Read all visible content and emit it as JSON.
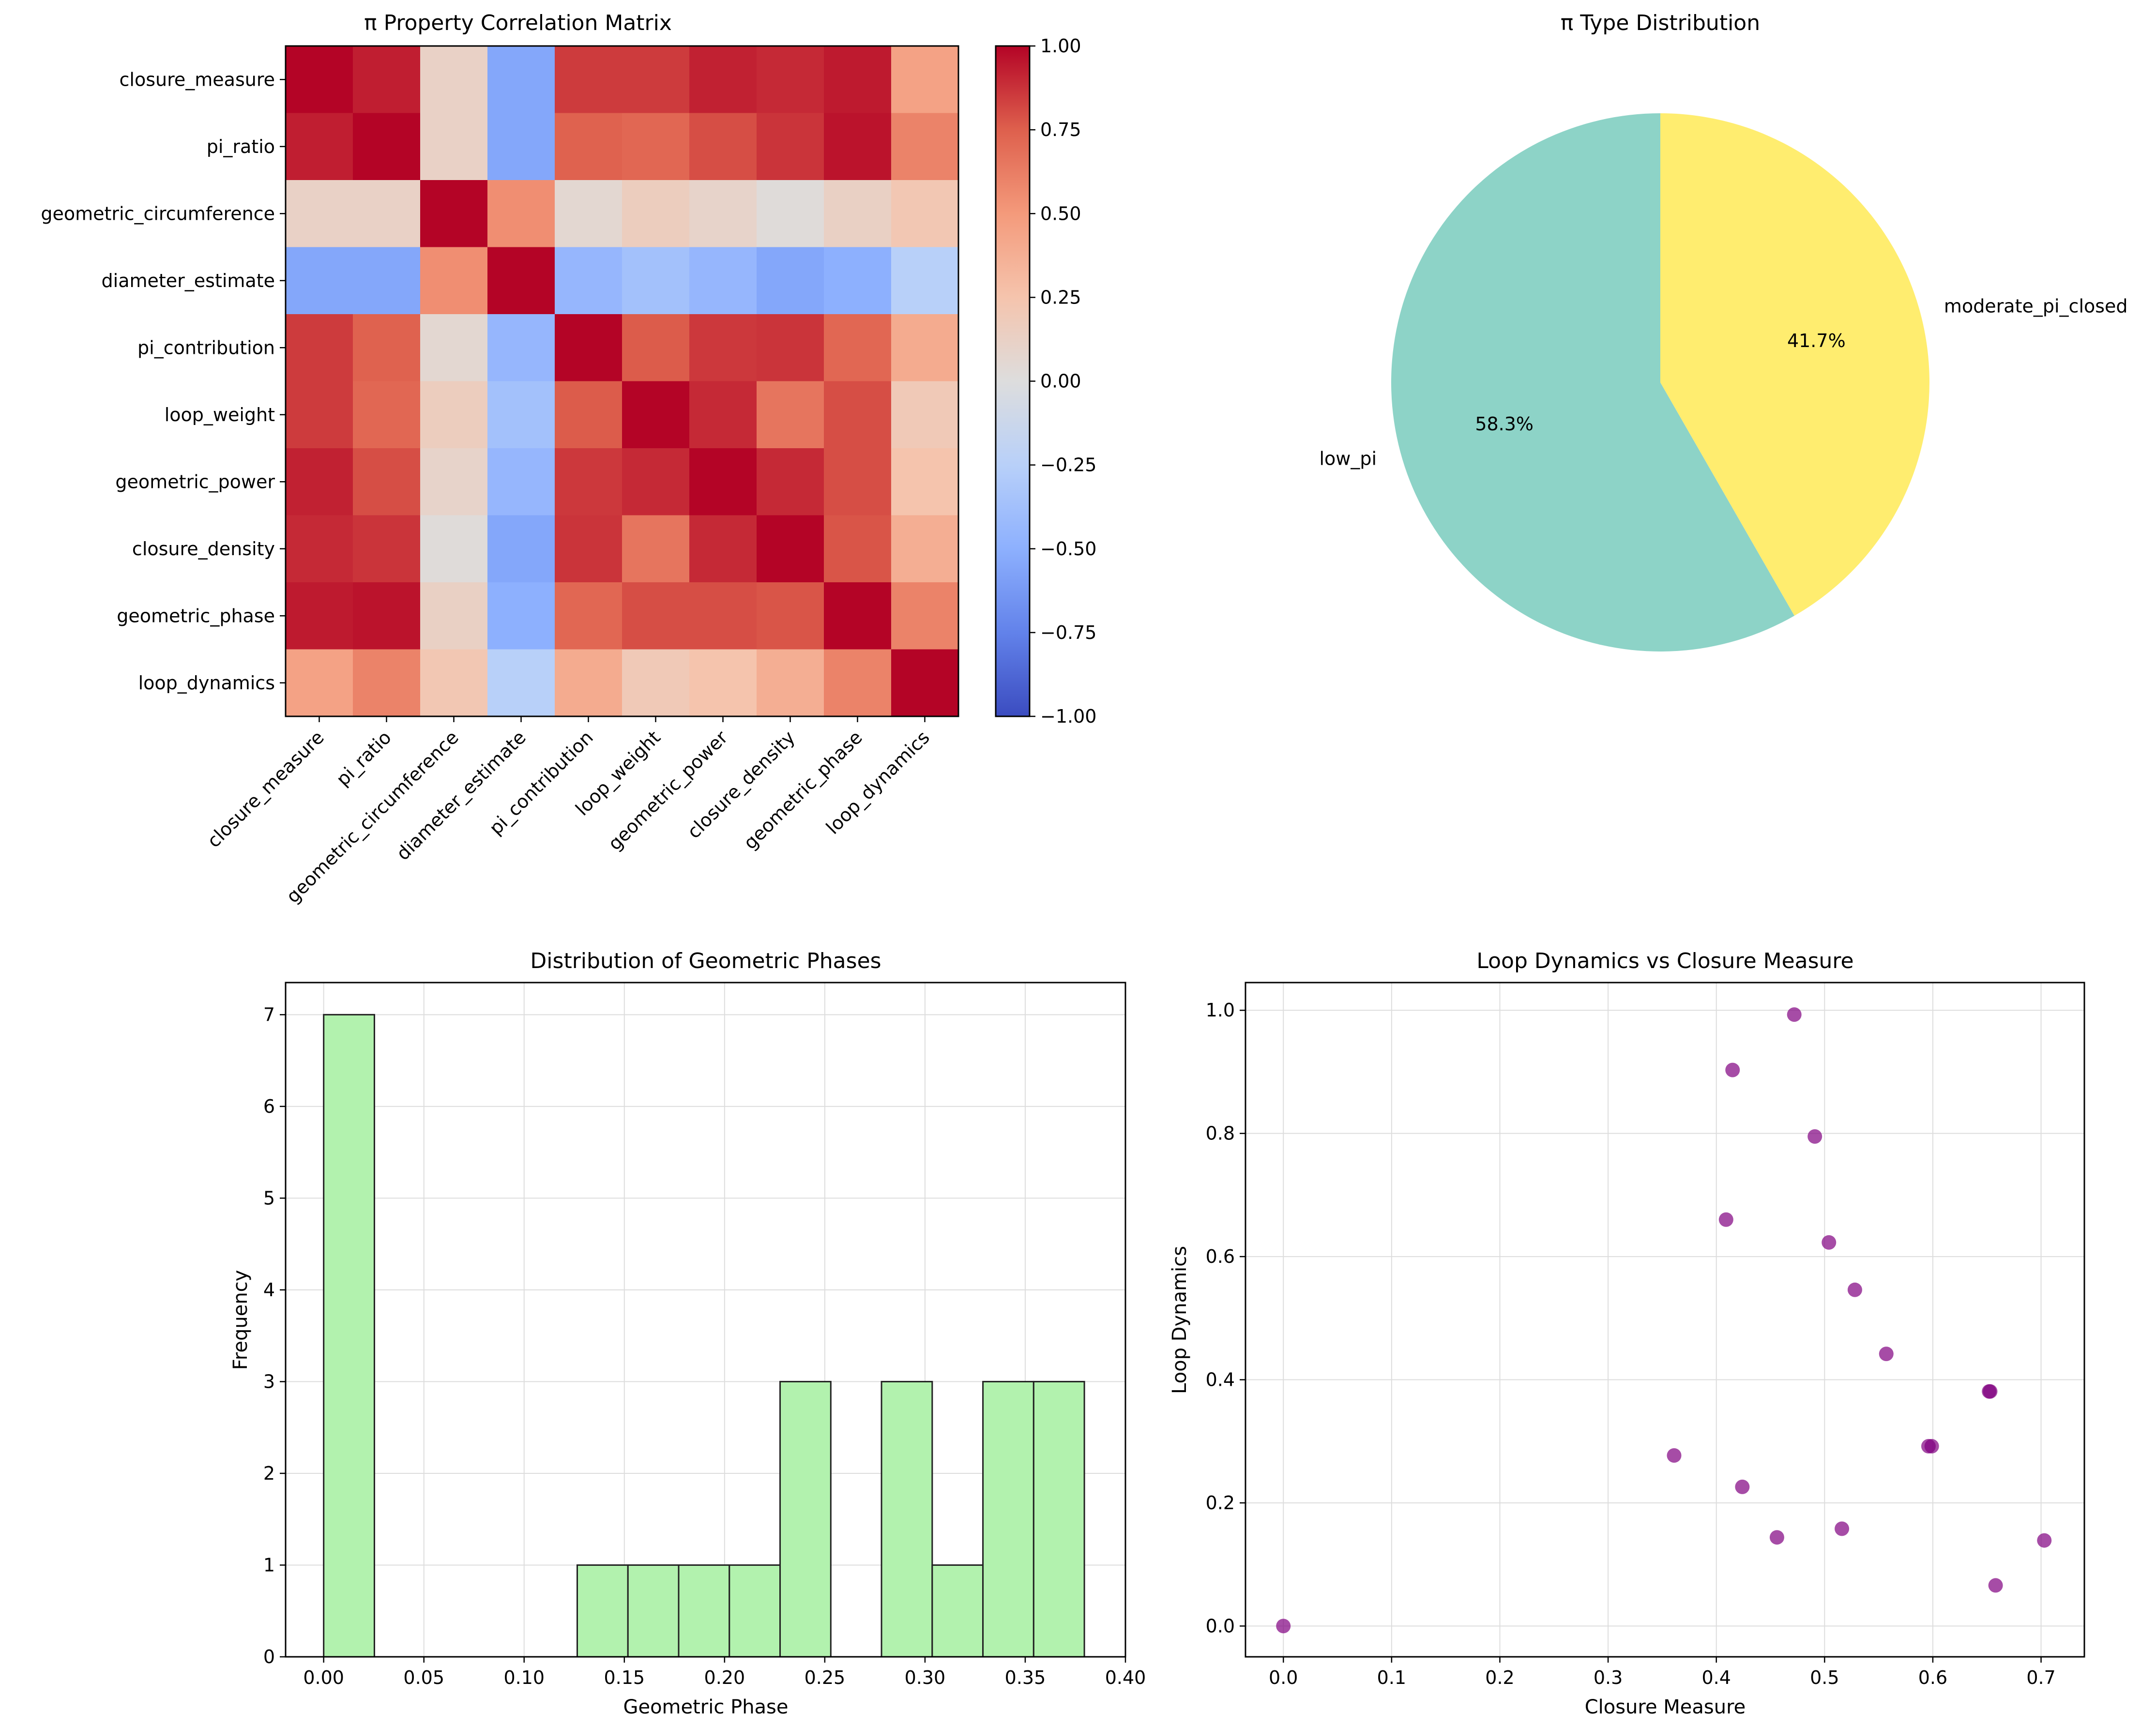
{
  "colors": {
    "pie": [
      "#8dd3c7",
      "#ffed6f"
    ],
    "hist_fill": "#b2f2ae",
    "scatter": "#800080",
    "grid": "#dddddd"
  },
  "chart_data": [
    {
      "id": "heatmap",
      "type": "heatmap",
      "title": "π Property Correlation Matrix",
      "labels": [
        "closure_measure",
        "pi_ratio",
        "geometric_circumference",
        "diameter_estimate",
        "pi_contribution",
        "loop_weight",
        "geometric_power",
        "closure_density",
        "geometric_phase",
        "loop_dynamics"
      ],
      "matrix": [
        [
          1.0,
          0.93,
          0.12,
          -0.55,
          0.85,
          0.85,
          0.92,
          0.9,
          0.94,
          0.45
        ],
        [
          0.93,
          1.0,
          0.12,
          -0.55,
          0.74,
          0.72,
          0.8,
          0.87,
          0.96,
          0.6
        ],
        [
          0.12,
          0.12,
          1.0,
          0.55,
          0.06,
          0.16,
          0.1,
          0.02,
          0.13,
          0.22
        ],
        [
          -0.55,
          -0.55,
          0.55,
          1.0,
          -0.45,
          -0.37,
          -0.45,
          -0.55,
          -0.5,
          -0.25
        ],
        [
          0.85,
          0.74,
          0.06,
          -0.45,
          1.0,
          0.76,
          0.86,
          0.87,
          0.72,
          0.4
        ],
        [
          0.85,
          0.72,
          0.16,
          -0.37,
          0.76,
          1.0,
          0.9,
          0.66,
          0.8,
          0.2
        ],
        [
          0.92,
          0.8,
          0.1,
          -0.45,
          0.86,
          0.9,
          1.0,
          0.9,
          0.8,
          0.25
        ],
        [
          0.9,
          0.87,
          0.02,
          -0.55,
          0.87,
          0.66,
          0.9,
          1.0,
          0.78,
          0.38
        ],
        [
          0.94,
          0.96,
          0.13,
          -0.5,
          0.72,
          0.8,
          0.8,
          0.78,
          1.0,
          0.6
        ],
        [
          0.45,
          0.6,
          0.22,
          -0.25,
          0.4,
          0.2,
          0.25,
          0.38,
          0.6,
          1.0
        ]
      ],
      "vmin": -1.0,
      "vmax": 1.0,
      "colorbar_ticks": [
        "1.00",
        "0.75",
        "0.50",
        "0.25",
        "0.00",
        "−0.25",
        "−0.50",
        "−0.75",
        "−1.00"
      ],
      "colormap": "coolwarm"
    },
    {
      "id": "pie",
      "type": "pie",
      "title": "π Type Distribution",
      "labels": [
        "low_pi",
        "moderate_pi_closed"
      ],
      "values": [
        58.3,
        41.7
      ],
      "pct_labels": [
        "58.3%",
        "41.7%"
      ]
    },
    {
      "id": "hist",
      "type": "bar",
      "title": "Distribution of Geometric Phases",
      "xlabel": "Geometric Phase",
      "ylabel": "Frequency",
      "xlim": [
        -0.019,
        0.4
      ],
      "ylim": [
        0,
        7.35
      ],
      "bin_edges": [
        0.0,
        0.0253,
        0.0506,
        0.0759,
        0.1012,
        0.1265,
        0.1518,
        0.1771,
        0.2024,
        0.2277,
        0.253,
        0.2783,
        0.3036,
        0.3289,
        0.3542,
        0.3795
      ],
      "counts": [
        7,
        0,
        0,
        0,
        0,
        1,
        1,
        1,
        1,
        3,
        0,
        3,
        1,
        3,
        3
      ],
      "xticks": [
        "0.00",
        "0.05",
        "0.10",
        "0.15",
        "0.20",
        "0.25",
        "0.30",
        "0.35",
        "0.40"
      ],
      "yticks": [
        "0",
        "1",
        "2",
        "3",
        "4",
        "5",
        "6",
        "7"
      ]
    },
    {
      "id": "scatter",
      "type": "scatter",
      "title": "Loop Dynamics vs Closure Measure",
      "xlabel": "Closure Measure",
      "ylabel": "Loop Dynamics",
      "xlim": [
        -0.035,
        0.74
      ],
      "ylim": [
        -0.05,
        1.045
      ],
      "x": [
        0.0,
        0.472,
        0.415,
        0.491,
        0.409,
        0.504,
        0.528,
        0.557,
        0.652,
        0.653,
        0.596,
        0.599,
        0.361,
        0.424,
        0.516,
        0.456,
        0.703,
        0.658
      ],
      "y": [
        0.0,
        0.993,
        0.903,
        0.795,
        0.66,
        0.623,
        0.546,
        0.442,
        0.381,
        0.381,
        0.292,
        0.292,
        0.277,
        0.226,
        0.158,
        0.144,
        0.139,
        0.066
      ],
      "xticks": [
        "0.0",
        "0.1",
        "0.2",
        "0.3",
        "0.4",
        "0.5",
        "0.6",
        "0.7"
      ],
      "yticks": [
        "0.0",
        "0.2",
        "0.4",
        "0.6",
        "0.8",
        "1.0"
      ]
    }
  ]
}
